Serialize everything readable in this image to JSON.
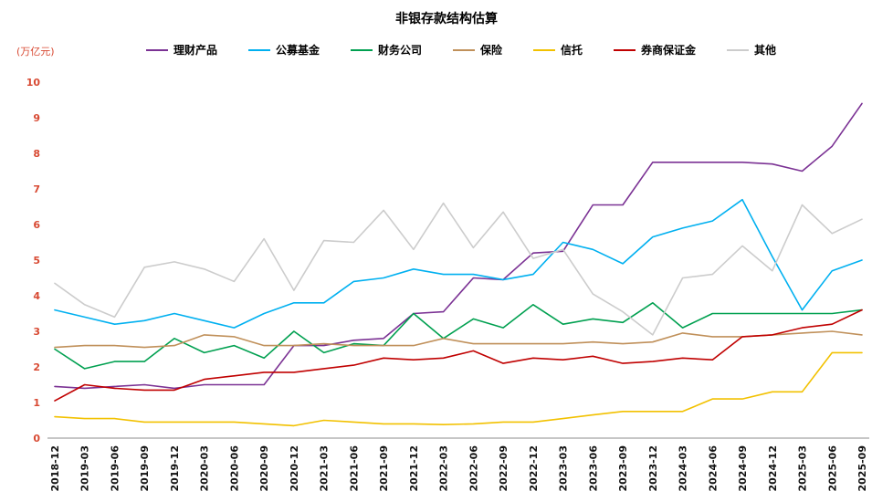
{
  "chart_data": {
    "type": "line",
    "title": "非银存款结构估算",
    "unit_label": "(万亿元)",
    "ylim": [
      0,
      10
    ],
    "ytick_step": 1,
    "grid": false,
    "legend_position": "top",
    "axis_label_color": "#d84a33",
    "categories": [
      "2018-12",
      "2019-03",
      "2019-06",
      "2019-09",
      "2019-12",
      "2020-03",
      "2020-06",
      "2020-09",
      "2020-12",
      "2021-03",
      "2021-06",
      "2021-09",
      "2021-12",
      "2022-03",
      "2022-06",
      "2022-09",
      "2022-12",
      "2023-03",
      "2023-06",
      "2023-09",
      "2023-12",
      "2024-03",
      "2024-06",
      "2024-09",
      "2024-12",
      "2025-03",
      "2025-06",
      "2025-09"
    ],
    "series": [
      {
        "name": "理财产品",
        "color": "#7B3294",
        "values": [
          1.45,
          1.4,
          1.45,
          1.5,
          1.4,
          1.5,
          1.5,
          1.5,
          2.6,
          2.6,
          2.75,
          2.8,
          3.5,
          3.55,
          4.5,
          4.45,
          5.2,
          5.25,
          6.55,
          6.55,
          7.75,
          7.75,
          7.75,
          7.75,
          7.7,
          7.5,
          8.2,
          9.4
        ]
      },
      {
        "name": "公募基金",
        "color": "#00B0F0",
        "values": [
          3.6,
          3.4,
          3.2,
          3.3,
          3.5,
          3.3,
          3.1,
          3.5,
          3.8,
          3.8,
          4.4,
          4.5,
          4.75,
          4.6,
          4.6,
          4.45,
          4.6,
          5.5,
          5.3,
          4.9,
          5.65,
          5.9,
          6.1,
          6.7,
          5.1,
          3.6,
          4.7,
          5.0
        ]
      },
      {
        "name": "财务公司",
        "color": "#00A050",
        "values": [
          2.5,
          1.95,
          2.15,
          2.15,
          2.8,
          2.4,
          2.6,
          2.25,
          3.0,
          2.4,
          2.65,
          2.6,
          3.5,
          2.8,
          3.35,
          3.1,
          3.75,
          3.2,
          3.35,
          3.25,
          3.8,
          3.1,
          3.5,
          3.5,
          3.5,
          3.5,
          3.5,
          3.6
        ]
      },
      {
        "name": "保险",
        "color": "#C0905A",
        "values": [
          2.55,
          2.6,
          2.6,
          2.55,
          2.6,
          2.9,
          2.85,
          2.6,
          2.6,
          2.65,
          2.6,
          2.6,
          2.6,
          2.8,
          2.65,
          2.65,
          2.65,
          2.65,
          2.7,
          2.65,
          2.7,
          2.95,
          2.85,
          2.85,
          2.9,
          2.95,
          3.0,
          2.9
        ]
      },
      {
        "name": "信托",
        "color": "#F2C100",
        "values": [
          0.6,
          0.55,
          0.55,
          0.45,
          0.45,
          0.45,
          0.45,
          0.4,
          0.35,
          0.5,
          0.45,
          0.4,
          0.4,
          0.38,
          0.4,
          0.45,
          0.45,
          0.55,
          0.65,
          0.75,
          0.75,
          0.75,
          1.1,
          1.1,
          1.3,
          1.3,
          2.4,
          2.4
        ]
      },
      {
        "name": "券商保证金",
        "color": "#C00000",
        "values": [
          1.05,
          1.5,
          1.4,
          1.35,
          1.35,
          1.65,
          1.75,
          1.85,
          1.85,
          1.95,
          2.05,
          2.25,
          2.2,
          2.25,
          2.45,
          2.1,
          2.25,
          2.2,
          2.3,
          2.1,
          2.15,
          2.25,
          2.2,
          2.85,
          2.9,
          3.1,
          3.2,
          3.6
        ]
      },
      {
        "name": "其他",
        "color": "#CCCCCC",
        "values": [
          4.35,
          3.75,
          3.4,
          4.8,
          4.95,
          4.75,
          4.4,
          5.6,
          4.15,
          5.55,
          5.5,
          6.4,
          5.3,
          6.6,
          5.35,
          6.35,
          5.05,
          5.3,
          4.05,
          3.55,
          2.9,
          4.5,
          4.6,
          5.4,
          4.7,
          6.55,
          5.75,
          6.15
        ]
      }
    ]
  }
}
